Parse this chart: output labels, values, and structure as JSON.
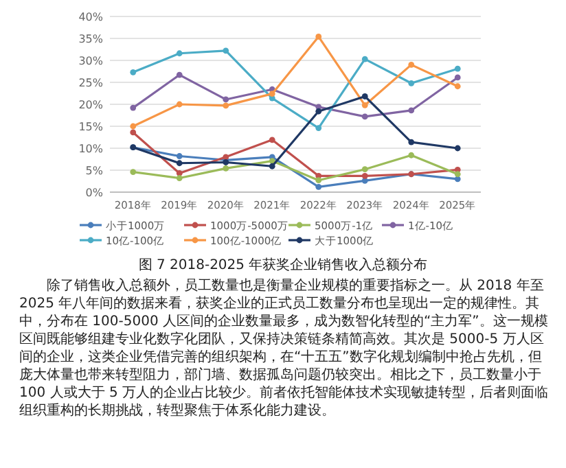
{
  "chart_data": {
    "type": "line",
    "title": "图 7 2018-2025 年获奖企业销售收入总额分布",
    "categories": [
      "2018年",
      "2019年",
      "2020年",
      "2021年",
      "2022年",
      "2023年",
      "2024年",
      "2025年"
    ],
    "series": [
      {
        "name": "小于1000万",
        "color": "#4a7ebb",
        "values": [
          10.2,
          8.2,
          7.3,
          8.0,
          1.2,
          2.6,
          4.1,
          3.0
        ]
      },
      {
        "name": "1000万-5000万",
        "color": "#c0504d",
        "values": [
          13.6,
          4.3,
          8.0,
          11.9,
          3.7,
          3.7,
          4.1,
          5.1
        ]
      },
      {
        "name": "5000万-1亿",
        "color": "#9bbb59",
        "values": [
          4.6,
          3.2,
          5.4,
          7.1,
          2.7,
          5.2,
          8.4,
          4.1
        ]
      },
      {
        "name": "1亿-10亿",
        "color": "#8064a2",
        "values": [
          19.2,
          26.7,
          21.1,
          23.4,
          19.4,
          17.2,
          18.6,
          26.1
        ]
      },
      {
        "name": "10亿-100亿",
        "color": "#4bacc6",
        "values": [
          27.3,
          31.6,
          32.2,
          21.4,
          14.6,
          30.3,
          24.8,
          28.1
        ]
      },
      {
        "name": "100亿-1000亿",
        "color": "#f79646",
        "values": [
          15.0,
          20.0,
          19.7,
          22.4,
          35.4,
          19.8,
          29.0,
          24.1
        ]
      },
      {
        "name": "大于1000亿",
        "color": "#1f3864",
        "values": [
          10.2,
          6.6,
          6.8,
          5.9,
          18.4,
          21.8,
          11.4,
          10.0
        ]
      }
    ],
    "ylim": [
      0,
      40
    ],
    "yticks": [
      {
        "value": 0,
        "label": "0%"
      },
      {
        "value": 5,
        "label": "5%"
      },
      {
        "value": 10,
        "label": "10%"
      },
      {
        "value": 15,
        "label": "15%"
      },
      {
        "value": 20,
        "label": "20%"
      },
      {
        "value": 25,
        "label": "25%"
      },
      {
        "value": 30,
        "label": "30%"
      },
      {
        "value": 35,
        "label": "35%"
      },
      {
        "value": 40,
        "label": "40%"
      }
    ],
    "grid": "y",
    "legend": "bottom",
    "marker": "circle",
    "line_style": "solid",
    "annotations": [
      "除了销售收入总额外，员工数量也是衡量企业规模的重要指标之一。从 2018 年至 2025 年八年间的数据来看，获奖企业的正式员工数量分布也呈现出一定的规律性。其中，分布在 100-5000 人区间的企业数量最多，成为数智化转型的“主力军”。这一规模区间既能够组建专业化数字化团队，又保持决策链条精简高效。其次是 5000-5 万人区间的企业，这类企业凭借完善的组织架构，在“十五五”数字化规划编制中抢占先机，但庞大体量也带来转型阻力，部门墙、数据孤岛问题仍较突出。相比之下，员工数量小于 100 人或大于 5 万人的企业占比较少。前者依托智能体技术实现敏捷转型，后者则面临组织重构的长期挑战，转型聚焦于体系化能力建设。"
    ]
  }
}
